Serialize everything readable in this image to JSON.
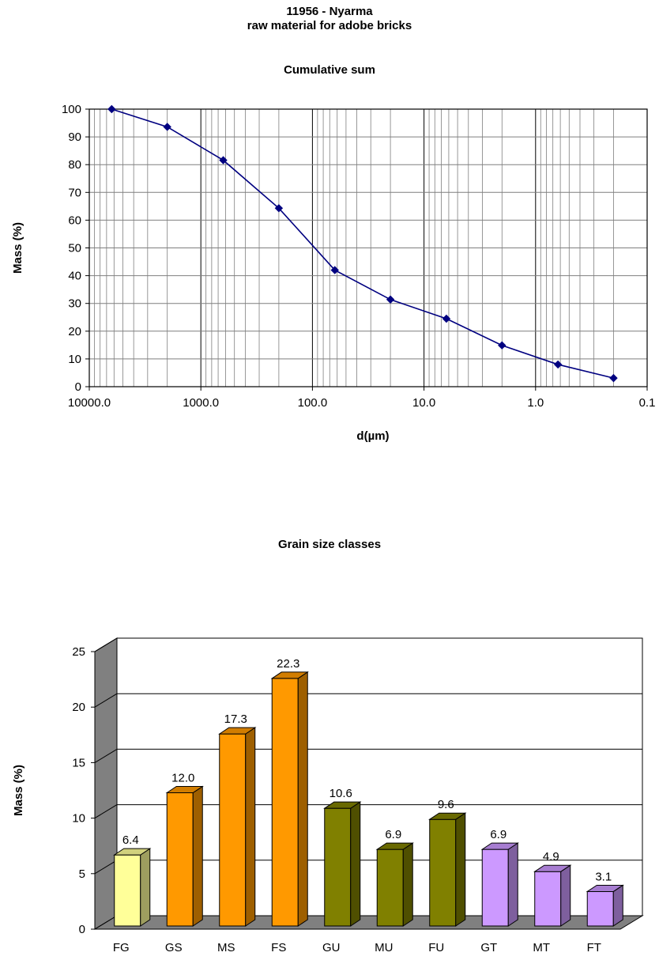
{
  "header": {
    "line1": "11956 - Nyarma",
    "line2": "raw material for adobe bricks"
  },
  "chart_data": [
    {
      "type": "line",
      "title": "Cumulative sum",
      "xlabel": "d(µm)",
      "ylabel": "Mass (%)",
      "x_scale": "log",
      "x_reversed": true,
      "xlim": [
        10000.0,
        0.1
      ],
      "ylim": [
        0,
        100
      ],
      "x_tick_labels": [
        "10000.0",
        "1000.0",
        "100.0",
        "10.0",
        "1.0",
        "0.1"
      ],
      "y_tick_labels": [
        "0",
        "10",
        "20",
        "30",
        "40",
        "50",
        "60",
        "70",
        "80",
        "90",
        "100"
      ],
      "grid": true,
      "series": [
        {
          "color": "#000080",
          "x": [
            6300,
            2000,
            630,
            200,
            63,
            20,
            6.3,
            2,
            0.63,
            0.2
          ],
          "y": [
            100,
            93.6,
            81.6,
            64.3,
            42.0,
            31.4,
            24.5,
            14.9,
            8.0,
            3.1
          ]
        }
      ]
    },
    {
      "type": "bar",
      "title": "Grain size classes",
      "xlabel": "",
      "ylabel": "Mass (%)",
      "ylim": [
        0,
        25
      ],
      "y_tick_labels": [
        "0",
        "5",
        "10",
        "15",
        "20",
        "25"
      ],
      "grid": true,
      "categories": [
        "FG",
        "GS",
        "MS",
        "FS",
        "GU",
        "MU",
        "FU",
        "GT",
        "MT",
        "FT"
      ],
      "values": [
        6.4,
        12.0,
        17.3,
        22.3,
        10.6,
        6.9,
        9.6,
        6.9,
        4.9,
        3.1
      ],
      "data_labels": [
        "6.4",
        "12.0",
        "17.3",
        "22.3",
        "10.6",
        "6.9",
        "9.6",
        "6.9",
        "4.9",
        "3.1"
      ],
      "colors": [
        "#FFFF99",
        "#FF9900",
        "#FF9900",
        "#FF9900",
        "#808000",
        "#808000",
        "#808000",
        "#CC99FF",
        "#CC99FF",
        "#CC99FF"
      ]
    }
  ]
}
